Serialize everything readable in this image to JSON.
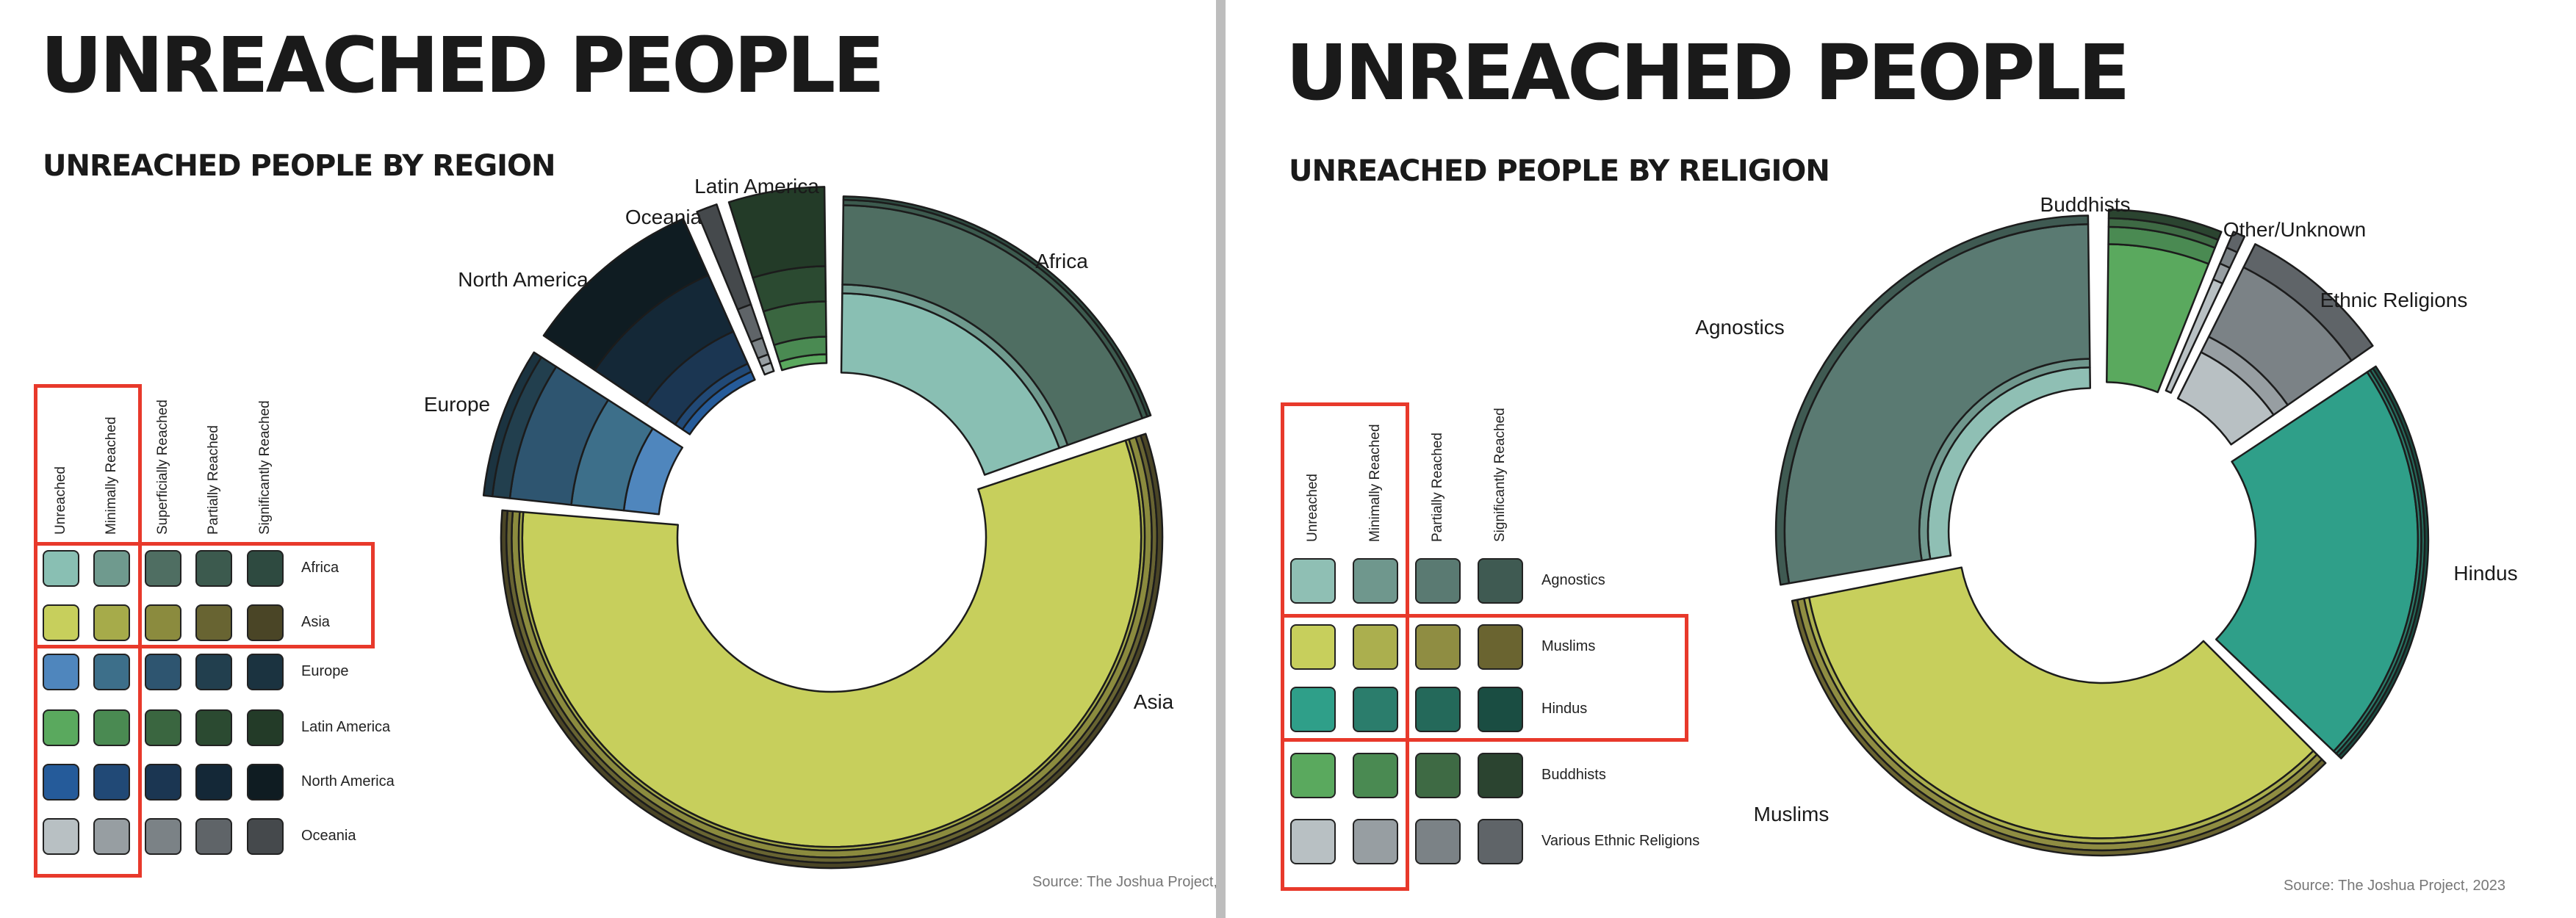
{
  "left": {
    "title": "UNREACHED PEOPLE",
    "subtitle": "UNREACHED PEOPLE BY REGION",
    "source": "Source: The Joshua Project,",
    "legend": {
      "columns": [
        "Unreached",
        "Minimally Reached",
        "Superficially Reached",
        "Partially Reached",
        "Significantly Reached"
      ],
      "rows": [
        {
          "label": "Africa",
          "colors": [
            "#89bfb3",
            "#6f9a8e",
            "#4f6e62",
            "#3c5a4e",
            "#2e4a40"
          ]
        },
        {
          "label": "Asia",
          "colors": [
            "#c7cf5c",
            "#a6ab4a",
            "#8b8b3e",
            "#686432",
            "#4a4526"
          ]
        },
        {
          "label": "Europe",
          "colors": [
            "#4f86bd",
            "#3d6f8a",
            "#2e5570",
            "#223f4e",
            "#1b3340"
          ]
        },
        {
          "label": "Latin America",
          "colors": [
            "#5aa95e",
            "#4a8a52",
            "#3a6640",
            "#2b4a31",
            "#233b28"
          ]
        },
        {
          "label": "North America",
          "colors": [
            "#255b9a",
            "#214976",
            "#1b3652",
            "#142837",
            "#0f1c22"
          ]
        },
        {
          "label": "Oceania",
          "colors": [
            "#b8c0c3",
            "#979ea2",
            "#7b8286",
            "#5f6468",
            "#45494c"
          ]
        }
      ]
    }
  },
  "right": {
    "title": "UNREACHED PEOPLE",
    "subtitle": "UNREACHED PEOPLE BY RELIGION",
    "source": "Source: The Joshua Project, 2023",
    "legend": {
      "columns": [
        "Unreached",
        "Minimally Reached",
        "Partially Reached",
        "Significantly Reached"
      ],
      "rows": [
        {
          "label": "Agnostics",
          "colors": [
            "#8fbfb4",
            "#6f978d",
            "#5a7a72",
            "#3f5a52"
          ]
        },
        {
          "label": "Muslims",
          "colors": [
            "#c7cf5c",
            "#abaf4e",
            "#8f8d42",
            "#6a6430"
          ]
        },
        {
          "label": "Hindus",
          "colors": [
            "#2f9f89",
            "#2b7d6c",
            "#24695a",
            "#1a4d42"
          ]
        },
        {
          "label": "Buddhists",
          "colors": [
            "#5aa95e",
            "#4a8a52",
            "#3e6a44",
            "#2b4430"
          ]
        },
        {
          "label": "Various Ethnic Religions",
          "colors": [
            "#b8c0c3",
            "#979ea2",
            "#7b8286",
            "#5f6468"
          ]
        }
      ]
    }
  },
  "chart_data": [
    {
      "type": "pie",
      "title": "UNREACHED PEOPLE BY REGION",
      "style": "exploded donut, segments layered by reach level",
      "categories": [
        "Africa",
        "Asia",
        "Europe",
        "North America",
        "Oceania",
        "Latin America"
      ],
      "series": [
        {
          "label": "Africa",
          "share": 0.183,
          "colors": [
            "#89bfb3",
            "#6f9a8e",
            "#4f6e62",
            "#3c5a4e",
            "#2e4a40"
          ],
          "layers": [
            0.45,
            0.05,
            0.45,
            0.03,
            0.02
          ]
        },
        {
          "label": "Asia",
          "share": 0.527,
          "colors": [
            "#c7cf5c",
            "#a6ab4a",
            "#8b8b3e",
            "#686432",
            "#4a4526"
          ],
          "layers": [
            0.88,
            0.02,
            0.04,
            0.03,
            0.03
          ]
        },
        {
          "label": "Europe",
          "share": 0.072,
          "colors": [
            "#4f86bd",
            "#3d6f8a",
            "#2e5570",
            "#223f4e",
            "#1b3340"
          ],
          "layers": [
            0.2,
            0.3,
            0.35,
            0.1,
            0.05
          ]
        },
        {
          "label": "North America",
          "share": 0.086,
          "colors": [
            "#255b9a",
            "#214976",
            "#1b3652",
            "#142837",
            "#0f1c22"
          ],
          "layers": [
            0.05,
            0.05,
            0.2,
            0.35,
            0.35
          ]
        },
        {
          "label": "Oceania",
          "share": 0.013,
          "colors": [
            "#b8c0c3",
            "#979ea2",
            "#7b8286",
            "#5f6468",
            "#45494c"
          ],
          "layers": [
            0.05,
            0.05,
            0.1,
            0.2,
            0.6
          ]
        },
        {
          "label": "Latin America",
          "share": 0.047,
          "colors": [
            "#5aa95e",
            "#4a8a52",
            "#3a6640",
            "#2b4a31",
            "#233b28"
          ],
          "layers": [
            0.05,
            0.1,
            0.2,
            0.2,
            0.45
          ]
        }
      ]
    },
    {
      "type": "pie",
      "title": "UNREACHED PEOPLE BY RELIGION",
      "style": "exploded donut, segments layered by reach level",
      "categories": [
        "Buddhists",
        "Other/Unknown",
        "Ethnic Religions",
        "Hindus",
        "Muslims",
        "Agnostics"
      ],
      "series": [
        {
          "label": "Buddhists",
          "share": 0.062,
          "colors": [
            "#5aa95e",
            "#4a8a52",
            "#3e6a44",
            "#2b4430"
          ],
          "layers": [
            0.8,
            0.1,
            0.05,
            0.05
          ]
        },
        {
          "label": "Other/Unknown",
          "share": 0.01,
          "colors": [
            "#b8c0c3",
            "#979ea2",
            "#7b8286",
            "#5f6468"
          ],
          "layers": [
            0.7,
            0.1,
            0.1,
            0.1
          ]
        },
        {
          "label": "Ethnic Religions",
          "share": 0.083,
          "colors": [
            "#b8c0c3",
            "#979ea2",
            "#7b8286",
            "#5f6468"
          ],
          "layers": [
            0.3,
            0.1,
            0.45,
            0.15
          ]
        },
        {
          "label": "Hindus",
          "share": 0.218,
          "colors": [
            "#2f9f89",
            "#2b7d6c",
            "#24695a",
            "#1a4d42"
          ],
          "layers": [
            0.94,
            0.02,
            0.02,
            0.02
          ]
        },
        {
          "label": "Muslims",
          "share": 0.348,
          "colors": [
            "#c7cf5c",
            "#abaf4e",
            "#8f8d42",
            "#6a6430"
          ],
          "layers": [
            0.9,
            0.03,
            0.04,
            0.03
          ]
        },
        {
          "label": "Agnostics",
          "share": 0.279,
          "colors": [
            "#8fbfb4",
            "#6f978d",
            "#5a7a72",
            "#3f5a52"
          ],
          "layers": [
            0.12,
            0.05,
            0.78,
            0.05
          ]
        }
      ]
    }
  ]
}
